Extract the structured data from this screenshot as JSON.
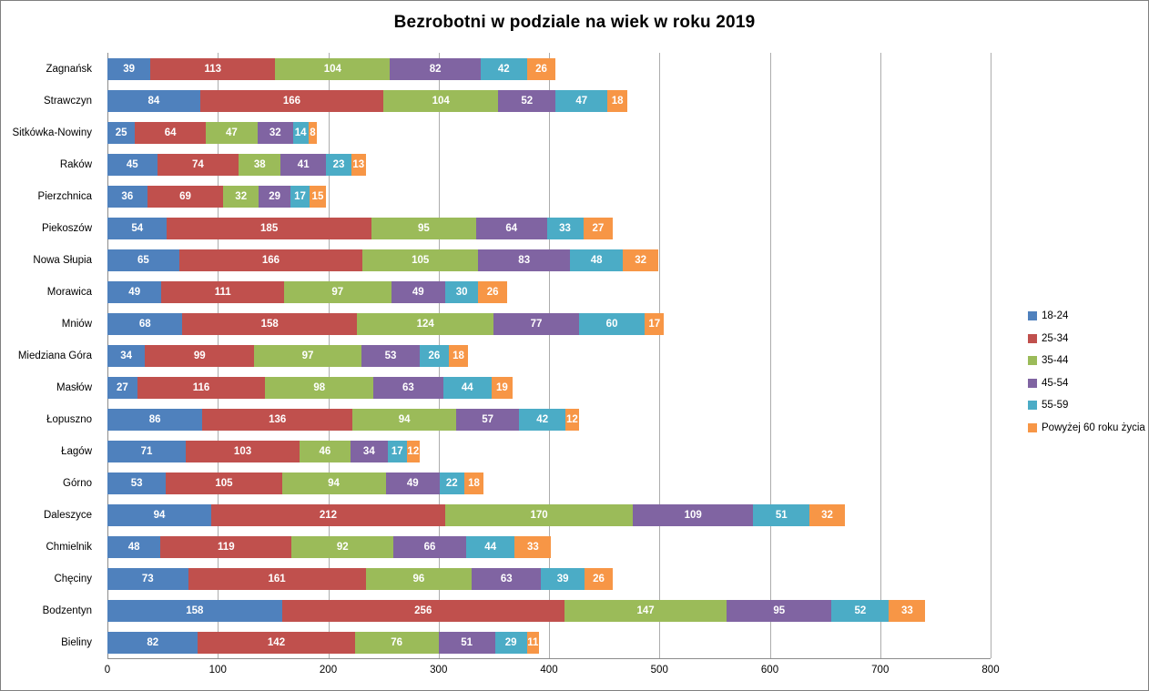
{
  "chart_data": {
    "type": "bar",
    "orientation": "horizontal",
    "stacked": true,
    "title": "Bezrobotni w podziale na wiek w roku 2019",
    "xlabel": "",
    "ylabel": "",
    "grid": true,
    "legend_position": "right",
    "x_axis": {
      "min": 0,
      "max": 800,
      "step": 100,
      "ticks": [
        "0",
        "100",
        "200",
        "300",
        "400",
        "500",
        "600",
        "700",
        "800"
      ]
    },
    "categories": [
      "Zagnańsk",
      "Strawczyn",
      "Sitkówka-Nowiny",
      "Raków",
      "Pierzchnica",
      "Piekoszów",
      "Nowa Słupia",
      "Morawica",
      "Mniów",
      "Miedziana Góra",
      "Masłów",
      "Łopuszno",
      "Łagów",
      "Górno",
      "Daleszyce",
      "Chmielnik",
      "Chęciny",
      "Bodzentyn",
      "Bieliny"
    ],
    "series": [
      {
        "name": "18-24",
        "color": "#4F81BD",
        "values": [
          39,
          84,
          25,
          45,
          36,
          54,
          65,
          49,
          68,
          34,
          27,
          86,
          71,
          53,
          94,
          48,
          73,
          158,
          82
        ]
      },
      {
        "name": "25-34",
        "color": "#C0504D",
        "values": [
          113,
          166,
          64,
          74,
          69,
          185,
          166,
          111,
          158,
          99,
          116,
          136,
          103,
          105,
          212,
          119,
          161,
          256,
          142
        ]
      },
      {
        "name": "35-44",
        "color": "#9BBB59",
        "values": [
          104,
          104,
          47,
          38,
          32,
          95,
          105,
          97,
          124,
          97,
          98,
          94,
          46,
          94,
          170,
          92,
          96,
          147,
          76
        ]
      },
      {
        "name": "45-54",
        "color": "#8064A2",
        "values": [
          82,
          52,
          32,
          41,
          29,
          64,
          83,
          49,
          77,
          53,
          63,
          57,
          34,
          49,
          109,
          66,
          63,
          95,
          51
        ]
      },
      {
        "name": "55-59",
        "color": "#4BACC6",
        "values": [
          42,
          47,
          14,
          23,
          17,
          33,
          48,
          30,
          60,
          26,
          44,
          42,
          17,
          22,
          51,
          44,
          39,
          52,
          29
        ]
      },
      {
        "name": "Powyżej 60 roku życia",
        "color": "#F79646",
        "values": [
          26,
          18,
          8,
          13,
          15,
          27,
          32,
          26,
          17,
          18,
          19,
          12,
          12,
          18,
          32,
          33,
          26,
          33,
          11
        ]
      }
    ]
  }
}
